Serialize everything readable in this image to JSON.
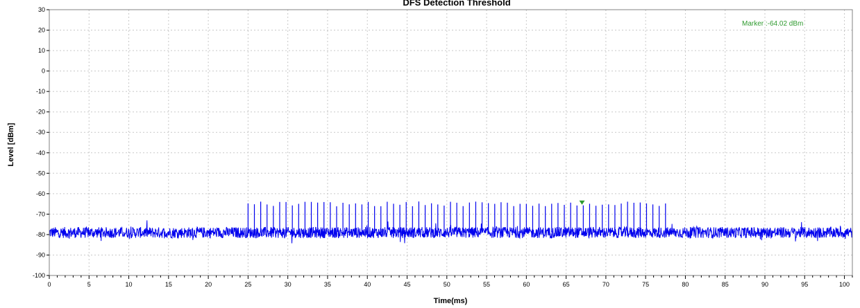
{
  "colors": {
    "trace": "#0000ee",
    "marker": "#2e9a2e",
    "grid": "#c8c8c8",
    "frame": "#808080"
  },
  "chart_data": {
    "type": "line",
    "title": "DFS Detection Threshold",
    "xlabel": "Time(ms)",
    "ylabel": "Level [dBm]",
    "xlim": [
      0,
      101
    ],
    "ylim": [
      -100,
      30
    ],
    "xticks": [
      0,
      5,
      10,
      15,
      20,
      25,
      30,
      35,
      40,
      45,
      50,
      55,
      60,
      65,
      70,
      75,
      80,
      85,
      90,
      95,
      100
    ],
    "xtick_labels": [
      "0",
      "5",
      "10",
      "15",
      "20",
      "25",
      "30",
      "35",
      "40",
      "45",
      "50",
      "55",
      "60",
      "65",
      "70",
      "75",
      "80",
      "85",
      "90",
      "95",
      "100"
    ],
    "yticks": [
      30,
      20,
      10,
      0,
      -10,
      -20,
      -30,
      -40,
      -50,
      -60,
      -70,
      -80,
      -90,
      -100
    ],
    "ytick_labels": [
      "30",
      "20",
      "10",
      "0",
      "-10",
      "-20",
      "-30",
      "-40",
      "-50",
      "-60",
      "-70",
      "-80",
      "-90",
      "-100"
    ],
    "grid": true,
    "series": [
      {
        "noise_floor_dbm": -79,
        "noise_band_dbm": [
          -82,
          -76
        ],
        "pulse_start_ms": 25.0,
        "pulse_end_ms": 77.5,
        "pulse_count": 67,
        "pulse_level_dbm": -65
      }
    ],
    "marker": {
      "x": 67.0,
      "y": -64.02,
      "label": "Marker :-64.02 dBm"
    }
  }
}
